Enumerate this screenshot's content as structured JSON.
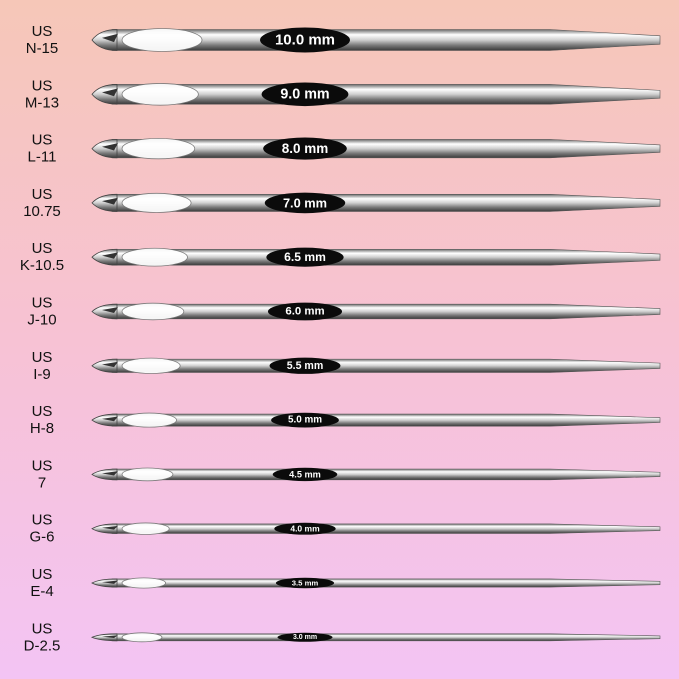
{
  "hooks": [
    {
      "us": "US",
      "size": "N-15",
      "mm": "10.0 mm"
    },
    {
      "us": "US",
      "size": "M-13",
      "mm": "9.0 mm"
    },
    {
      "us": "US",
      "size": "L-11",
      "mm": "8.0 mm"
    },
    {
      "us": "US",
      "size": "10.75",
      "mm": "7.0 mm"
    },
    {
      "us": "US",
      "size": "K-10.5",
      "mm": "6.5 mm"
    },
    {
      "us": "US",
      "size": "J-10",
      "mm": "6.0 mm"
    },
    {
      "us": "US",
      "size": "I-9",
      "mm": "5.5 mm"
    },
    {
      "us": "US",
      "size": "H-8",
      "mm": "5.0 mm"
    },
    {
      "us": "US",
      "size": "7",
      "mm": "4.5 mm"
    },
    {
      "us": "US",
      "size": "G-6",
      "mm": "4.0 mm"
    },
    {
      "us": "US",
      "size": "E-4",
      "mm": "3.5 mm"
    },
    {
      "us": "US",
      "size": "D-2.5",
      "mm": "3.0 mm"
    }
  ]
}
